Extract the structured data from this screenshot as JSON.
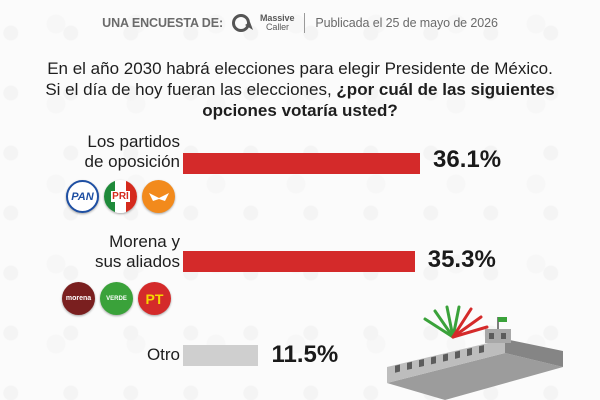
{
  "header": {
    "survey_label": "UNA ENCUESTA DE:",
    "brand_name": "Massive",
    "brand_sub": "Caller",
    "published": "Publicada el 25 de mayo de 2026"
  },
  "question": {
    "line1": "En el año 2030 habrá elecciones para elegir Presidente de México.",
    "line2_normal": "Si el día de hoy fueran las elecciones, ",
    "line2_bold": "¿por cuál de las siguientes",
    "line3_bold": "opciones votaría usted?"
  },
  "colors": {
    "bar_main": "#d42a2a",
    "bar_other": "#cfcfcf",
    "pan": "#1e4fa3",
    "pri_green": "#1f8a3a",
    "pri_red": "#d52b1e",
    "mc": "#f28a1c",
    "morena": "#7a1f1f",
    "pvem": "#3aa23a",
    "pt": "#d42a2a"
  },
  "logos": {
    "opposition": [
      {
        "icon": "pan-logo-icon",
        "text": "PAN"
      },
      {
        "icon": "pri-logo-icon",
        "text": "PRI"
      },
      {
        "icon": "movimiento-ciudadano-logo-icon",
        "text": ""
      }
    ],
    "morena_allies": [
      {
        "icon": "morena-logo-icon",
        "text": "morena"
      },
      {
        "icon": "pvem-logo-icon",
        "text": "VERDE"
      },
      {
        "icon": "pt-logo-icon",
        "text": "PT"
      }
    ]
  },
  "chart_data": {
    "type": "bar",
    "orientation": "horizontal",
    "categories": [
      "Los partidos\nde oposición",
      "Morena y\nsus aliados",
      "Otro"
    ],
    "values": [
      36.1,
      35.3,
      11.5
    ],
    "value_labels": [
      "36.1%",
      "35.3%",
      "11.5%"
    ],
    "bar_colors": [
      "#d42a2a",
      "#d42a2a",
      "#cfcfcf"
    ],
    "unit": "%",
    "xlim": [
      0,
      60
    ],
    "grid": false,
    "legend": "none"
  }
}
